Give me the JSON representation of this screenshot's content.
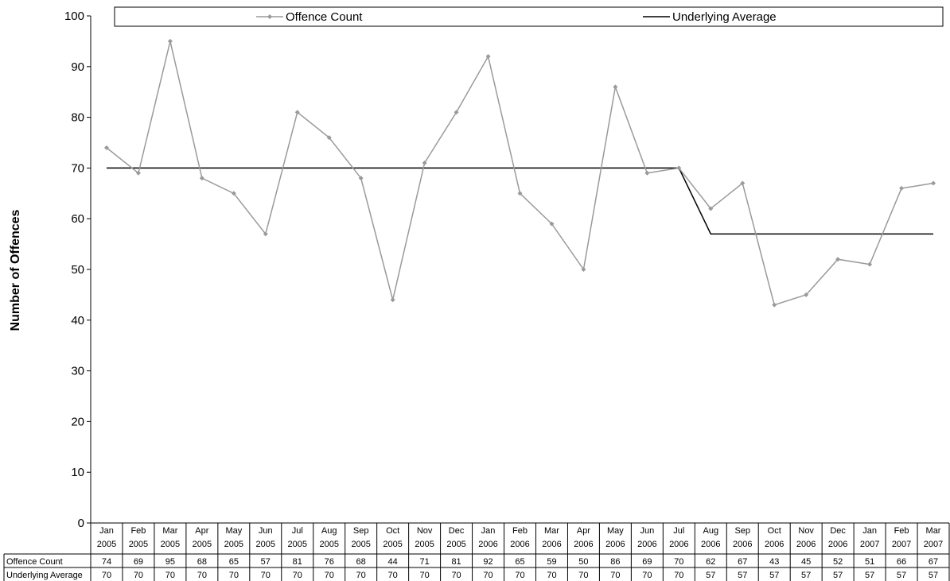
{
  "chart_data": {
    "type": "line",
    "title": "",
    "xlabel": "",
    "ylabel": "Number of Offences",
    "ylim": [
      0,
      100
    ],
    "yticks": [
      0,
      10,
      20,
      30,
      40,
      50,
      60,
      70,
      80,
      90,
      100
    ],
    "grid": false,
    "legend_position": "top",
    "categories": [
      [
        "Jan",
        "2005"
      ],
      [
        "Feb",
        "2005"
      ],
      [
        "Mar",
        "2005"
      ],
      [
        "Apr",
        "2005"
      ],
      [
        "May",
        "2005"
      ],
      [
        "Jun",
        "2005"
      ],
      [
        "Jul",
        "2005"
      ],
      [
        "Aug",
        "2005"
      ],
      [
        "Sep",
        "2005"
      ],
      [
        "Oct",
        "2005"
      ],
      [
        "Nov",
        "2005"
      ],
      [
        "Dec",
        "2005"
      ],
      [
        "Jan",
        "2006"
      ],
      [
        "Feb",
        "2006"
      ],
      [
        "Mar",
        "2006"
      ],
      [
        "Apr",
        "2006"
      ],
      [
        "May",
        "2006"
      ],
      [
        "Jun",
        "2006"
      ],
      [
        "Jul",
        "2006"
      ],
      [
        "Aug",
        "2006"
      ],
      [
        "Sep",
        "2006"
      ],
      [
        "Oct",
        "2006"
      ],
      [
        "Nov",
        "2006"
      ],
      [
        "Dec",
        "2006"
      ],
      [
        "Jan",
        "2007"
      ],
      [
        "Feb",
        "2007"
      ],
      [
        "Mar",
        "2007"
      ]
    ],
    "series": [
      {
        "name": "Offence Count",
        "color": "#9a9a9a",
        "marker": "diamond",
        "values": [
          74,
          69,
          95,
          68,
          65,
          57,
          81,
          76,
          68,
          44,
          71,
          81,
          92,
          65,
          59,
          50,
          86,
          69,
          70,
          62,
          67,
          43,
          45,
          52,
          51,
          66,
          67
        ]
      },
      {
        "name": "Underlying Average",
        "color": "#000000",
        "marker": "none",
        "values": [
          70,
          70,
          70,
          70,
          70,
          70,
          70,
          70,
          70,
          70,
          70,
          70,
          70,
          70,
          70,
          70,
          70,
          70,
          70,
          57,
          57,
          57,
          57,
          57,
          57,
          57,
          57
        ]
      }
    ]
  }
}
